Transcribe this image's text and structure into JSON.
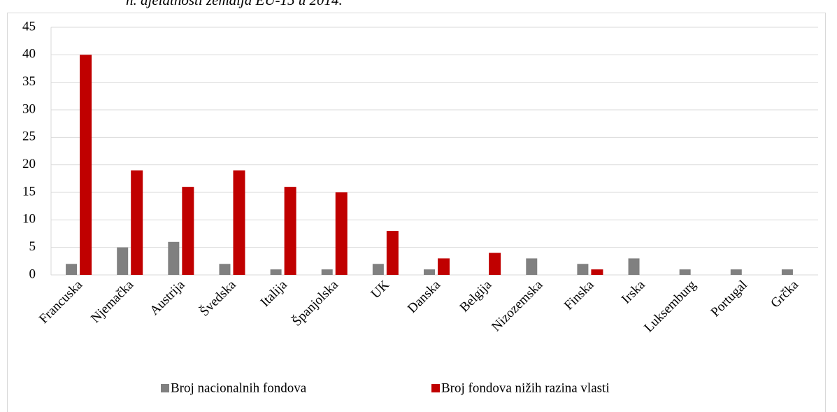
{
  "chart_data": {
    "type": "bar",
    "title": "n. djelatnosti zemalja EU-15 u 2014.",
    "categories": [
      "Francuska",
      "Njemačka",
      "Austrija",
      "Švedska",
      "Italija",
      "Španjolska",
      "UK",
      "Danska",
      "Belgija",
      "Nizozemska",
      "Finska",
      "Irska",
      "Luksemburg",
      "Portugal",
      "Grčka"
    ],
    "series": [
      {
        "name": "Broj nacionalnih fondova",
        "color": "#808080",
        "values": [
          2,
          5,
          6,
          2,
          1,
          1,
          2,
          1,
          0,
          3,
          2,
          3,
          1,
          1,
          1
        ]
      },
      {
        "name": "Broj fondova nižih razina vlasti",
        "color": "#c00000",
        "values": [
          40,
          19,
          16,
          19,
          16,
          15,
          8,
          3,
          4,
          0,
          1,
          0,
          0,
          0,
          0
        ]
      }
    ],
    "ylim": [
      0,
      45
    ],
    "yticks": [
      0,
      5,
      10,
      15,
      20,
      25,
      30,
      35,
      40,
      45
    ],
    "grid": true,
    "legend": "bottom"
  }
}
